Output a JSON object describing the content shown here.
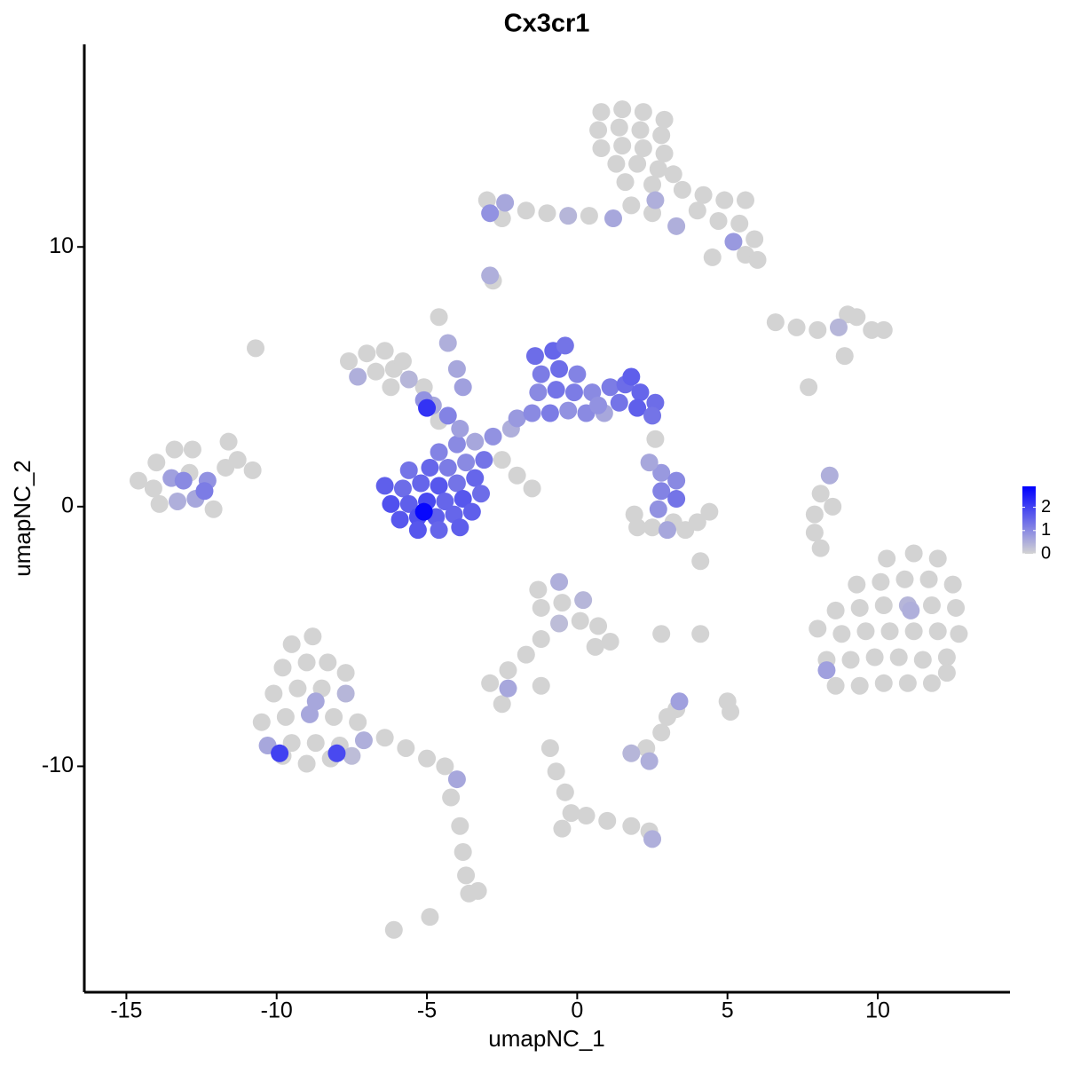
{
  "chart_data": {
    "type": "scatter",
    "title": "Cx3cr1",
    "x_label": "umapNC_1",
    "y_label": "umapNC_2",
    "xlim": [
      -16.4,
      14.4
    ],
    "ylim": [
      -18.7,
      17.8
    ],
    "xticks": [
      -15,
      -10,
      -5,
      0,
      5,
      10
    ],
    "yticks": [
      -10,
      0,
      10
    ],
    "color_scale": {
      "low": "#d3d3d3",
      "high": "#0000ff",
      "limits": [
        0,
        2.9
      ],
      "ticks": [
        0,
        1,
        2
      ]
    },
    "points": [
      [
        0.8,
        15.2,
        0
      ],
      [
        1.5,
        15.3,
        0
      ],
      [
        2.2,
        15.2,
        0
      ],
      [
        2.9,
        14.9,
        0
      ],
      [
        0.7,
        14.5,
        0
      ],
      [
        1.4,
        14.6,
        0
      ],
      [
        2.1,
        14.5,
        0
      ],
      [
        2.8,
        14.3,
        0
      ],
      [
        0.8,
        13.8,
        0
      ],
      [
        1.5,
        13.9,
        0
      ],
      [
        2.2,
        13.8,
        0
      ],
      [
        2.9,
        13.6,
        0
      ],
      [
        1.3,
        13.2,
        0
      ],
      [
        2.0,
        13.2,
        0
      ],
      [
        2.7,
        13.0,
        0
      ],
      [
        1.6,
        12.5,
        0
      ],
      [
        2.5,
        12.4,
        0
      ],
      [
        3.2,
        12.8,
        0
      ],
      [
        3.5,
        12.2,
        0
      ],
      [
        4.2,
        12.0,
        0
      ],
      [
        4.9,
        11.8,
        0
      ],
      [
        5.6,
        11.8,
        0
      ],
      [
        4.0,
        11.4,
        0
      ],
      [
        4.7,
        11.0,
        0
      ],
      [
        5.4,
        10.9,
        0
      ],
      [
        5.9,
        10.3,
        0
      ],
      [
        5.2,
        10.2,
        0.8
      ],
      [
        5.6,
        9.7,
        0
      ],
      [
        6.0,
        9.5,
        0
      ],
      [
        3.3,
        10.8,
        0.5
      ],
      [
        2.5,
        11.3,
        0
      ],
      [
        1.8,
        11.6,
        0
      ],
      [
        1.2,
        11.1,
        0.6
      ],
      [
        0.4,
        11.2,
        0
      ],
      [
        -0.3,
        11.2,
        0.4
      ],
      [
        -1.0,
        11.3,
        0
      ],
      [
        -1.7,
        11.4,
        0
      ],
      [
        -2.4,
        11.7,
        0.6
      ],
      [
        -3.0,
        11.8,
        0
      ],
      [
        -2.9,
        11.3,
        0.9
      ],
      [
        -2.5,
        11.1,
        0
      ],
      [
        2.6,
        11.8,
        0.5
      ],
      [
        4.5,
        9.6,
        0
      ],
      [
        -2.9,
        8.9,
        0.5
      ],
      [
        -2.8,
        8.7,
        0
      ],
      [
        -6.4,
        0.8,
        1.6
      ],
      [
        -5.8,
        0.7,
        1.4
      ],
      [
        -5.2,
        0.9,
        1.5
      ],
      [
        -4.6,
        0.8,
        1.7
      ],
      [
        -4.0,
        0.9,
        1.3
      ],
      [
        -3.4,
        1.1,
        1.5
      ],
      [
        -6.2,
        0.1,
        1.8
      ],
      [
        -5.6,
        0.1,
        1.6
      ],
      [
        -5.0,
        0.2,
        1.9
      ],
      [
        -4.4,
        0.2,
        1.5
      ],
      [
        -3.8,
        0.3,
        1.7
      ],
      [
        -3.2,
        0.5,
        1.4
      ],
      [
        -5.9,
        -0.5,
        1.7
      ],
      [
        -5.3,
        -0.4,
        1.8
      ],
      [
        -4.7,
        -0.4,
        1.6
      ],
      [
        -4.1,
        -0.3,
        1.5
      ],
      [
        -3.5,
        -0.2,
        1.6
      ],
      [
        -5.3,
        -0.9,
        1.7
      ],
      [
        -4.6,
        -0.9,
        1.5
      ],
      [
        -3.9,
        -0.8,
        1.6
      ],
      [
        -5.1,
        -0.2,
        2.8
      ],
      [
        -5.6,
        1.4,
        1.3
      ],
      [
        -4.9,
        1.5,
        1.5
      ],
      [
        -4.3,
        1.5,
        1.2
      ],
      [
        -3.7,
        1.7,
        1.0
      ],
      [
        -3.1,
        1.8,
        1.3
      ],
      [
        -4.6,
        2.1,
        1.1
      ],
      [
        -4.0,
        2.4,
        1.0
      ],
      [
        -3.4,
        2.5,
        0.6
      ],
      [
        -2.8,
        2.7,
        0.9
      ],
      [
        -2.2,
        3.0,
        0.5
      ],
      [
        -3.9,
        3.0,
        0.7
      ],
      [
        -4.3,
        3.5,
        1.1
      ],
      [
        -4.8,
        3.9,
        0.6
      ],
      [
        -5.1,
        4.1,
        0.9
      ],
      [
        -5.0,
        3.8,
        2.2
      ],
      [
        -2.0,
        3.4,
        0.8
      ],
      [
        -1.5,
        3.6,
        1.0
      ],
      [
        -0.9,
        3.6,
        1.2
      ],
      [
        -0.3,
        3.7,
        0.9
      ],
      [
        0.3,
        3.6,
        1.0
      ],
      [
        0.9,
        3.6,
        0.6
      ],
      [
        -1.4,
        5.8,
        1.4
      ],
      [
        -0.8,
        6.0,
        1.5
      ],
      [
        -1.2,
        5.1,
        1.2
      ],
      [
        -0.6,
        5.3,
        1.4
      ],
      [
        0.0,
        5.1,
        1.1
      ],
      [
        -1.3,
        4.4,
        1.0
      ],
      [
        -0.7,
        4.5,
        1.3
      ],
      [
        -0.1,
        4.4,
        1.2
      ],
      [
        0.5,
        4.4,
        1.0
      ],
      [
        1.1,
        4.6,
        1.2
      ],
      [
        1.6,
        4.7,
        1.4
      ],
      [
        2.1,
        4.4,
        1.5
      ],
      [
        2.6,
        4.0,
        1.4
      ],
      [
        1.4,
        4.0,
        1.3
      ],
      [
        2.0,
        3.8,
        1.6
      ],
      [
        2.5,
        3.5,
        1.3
      ],
      [
        1.8,
        5.0,
        1.6
      ],
      [
        0.7,
        3.9,
        0.9
      ],
      [
        -0.4,
        6.2,
        1.3
      ],
      [
        -7.6,
        5.6,
        0
      ],
      [
        -7.0,
        5.9,
        0
      ],
      [
        -6.4,
        6.0,
        0
      ],
      [
        -7.3,
        5.0,
        0.5
      ],
      [
        -6.7,
        5.2,
        0
      ],
      [
        -6.1,
        5.3,
        0
      ],
      [
        -5.6,
        4.9,
        0.4
      ],
      [
        -6.2,
        4.6,
        0
      ],
      [
        -5.1,
        4.6,
        0
      ],
      [
        -5.8,
        5.6,
        0
      ],
      [
        -4.6,
        3.3,
        0
      ],
      [
        -4.6,
        7.3,
        0
      ],
      [
        -4.3,
        6.3,
        0.5
      ],
      [
        -4.0,
        5.3,
        0.6
      ],
      [
        -3.8,
        4.6,
        0.7
      ],
      [
        -2.5,
        1.8,
        0
      ],
      [
        -2.0,
        1.2,
        0
      ],
      [
        -1.5,
        0.7,
        0
      ],
      [
        2.8,
        1.3,
        0.8
      ],
      [
        3.3,
        1.0,
        1.0
      ],
      [
        2.8,
        0.6,
        1.1
      ],
      [
        3.3,
        0.3,
        1.3
      ],
      [
        2.7,
        -0.1,
        0.9
      ],
      [
        3.2,
        -0.6,
        0
      ],
      [
        2.5,
        -0.8,
        0
      ],
      [
        3.6,
        -0.9,
        0
      ],
      [
        4.0,
        -0.6,
        0
      ],
      [
        1.9,
        -0.3,
        0
      ],
      [
        2.0,
        -0.8,
        0
      ],
      [
        4.4,
        -0.2,
        0
      ],
      [
        3.0,
        -0.9,
        0.6
      ],
      [
        2.4,
        1.7,
        0.6
      ],
      [
        2.6,
        2.6,
        0
      ],
      [
        4.1,
        -2.1,
        0
      ],
      [
        -14.6,
        1.0,
        0
      ],
      [
        -14.0,
        1.7,
        0
      ],
      [
        -13.4,
        2.2,
        0
      ],
      [
        -12.8,
        2.2,
        0
      ],
      [
        -14.1,
        0.7,
        0
      ],
      [
        -13.5,
        1.1,
        0.7
      ],
      [
        -12.9,
        1.3,
        0
      ],
      [
        -12.3,
        1.0,
        0.9
      ],
      [
        -11.7,
        1.5,
        0
      ],
      [
        -13.9,
        0.1,
        0
      ],
      [
        -13.3,
        0.2,
        0.5
      ],
      [
        -12.7,
        0.3,
        0.6
      ],
      [
        -12.1,
        -0.1,
        0
      ],
      [
        -11.3,
        1.8,
        0
      ],
      [
        -11.6,
        2.5,
        0
      ],
      [
        -10.8,
        1.4,
        0
      ],
      [
        -12.4,
        0.6,
        1.2
      ],
      [
        -13.1,
        1.0,
        1.0
      ],
      [
        -10.7,
        6.1,
        0
      ],
      [
        10.3,
        -2.0,
        0
      ],
      [
        11.2,
        -1.8,
        0
      ],
      [
        12.0,
        -2.0,
        0
      ],
      [
        9.3,
        -3.0,
        0
      ],
      [
        10.1,
        -2.9,
        0
      ],
      [
        10.9,
        -2.8,
        0
      ],
      [
        11.7,
        -2.8,
        0
      ],
      [
        12.5,
        -3.0,
        0
      ],
      [
        8.6,
        -4.0,
        0
      ],
      [
        9.4,
        -3.9,
        0
      ],
      [
        10.2,
        -3.8,
        0
      ],
      [
        11.0,
        -3.8,
        0.4
      ],
      [
        11.8,
        -3.8,
        0
      ],
      [
        12.6,
        -3.9,
        0
      ],
      [
        8.0,
        -4.7,
        0
      ],
      [
        8.8,
        -4.9,
        0
      ],
      [
        9.6,
        -4.8,
        0
      ],
      [
        10.4,
        -4.8,
        0
      ],
      [
        11.2,
        -4.8,
        0
      ],
      [
        12.0,
        -4.8,
        0
      ],
      [
        12.7,
        -4.9,
        0
      ],
      [
        8.3,
        -5.9,
        0
      ],
      [
        9.1,
        -5.9,
        0
      ],
      [
        9.9,
        -5.8,
        0
      ],
      [
        10.7,
        -5.8,
        0
      ],
      [
        11.5,
        -5.9,
        0
      ],
      [
        12.3,
        -5.8,
        0
      ],
      [
        8.6,
        -6.9,
        0
      ],
      [
        9.4,
        -6.9,
        0
      ],
      [
        10.2,
        -6.8,
        0
      ],
      [
        11.0,
        -6.8,
        0
      ],
      [
        11.8,
        -6.8,
        0
      ],
      [
        12.3,
        -6.4,
        0
      ],
      [
        8.3,
        -6.3,
        0.7
      ],
      [
        11.1,
        -4.0,
        0.5
      ],
      [
        6.6,
        7.1,
        0
      ],
      [
        7.3,
        6.9,
        0
      ],
      [
        8.0,
        6.8,
        0
      ],
      [
        8.7,
        6.9,
        0.4
      ],
      [
        9.3,
        7.3,
        0
      ],
      [
        9.8,
        6.8,
        0
      ],
      [
        10.2,
        6.8,
        0
      ],
      [
        9.0,
        7.4,
        0
      ],
      [
        8.9,
        5.8,
        0
      ],
      [
        7.7,
        4.6,
        0
      ],
      [
        8.4,
        1.2,
        0.5
      ],
      [
        8.1,
        0.5,
        0
      ],
      [
        7.9,
        -0.3,
        0
      ],
      [
        7.9,
        -1.0,
        0
      ],
      [
        8.1,
        -1.6,
        0
      ],
      [
        8.5,
        0.0,
        0
      ],
      [
        -9.5,
        -5.3,
        0
      ],
      [
        -8.8,
        -5.0,
        0
      ],
      [
        -9.8,
        -6.2,
        0
      ],
      [
        -9.0,
        -6.0,
        0
      ],
      [
        -8.3,
        -6.0,
        0
      ],
      [
        -7.7,
        -6.4,
        0
      ],
      [
        -10.1,
        -7.2,
        0
      ],
      [
        -9.3,
        -7.0,
        0
      ],
      [
        -8.5,
        -7.0,
        0
      ],
      [
        -7.7,
        -7.2,
        0.4
      ],
      [
        -10.5,
        -8.3,
        0
      ],
      [
        -9.7,
        -8.1,
        0
      ],
      [
        -8.9,
        -8.0,
        0.6
      ],
      [
        -8.1,
        -8.1,
        0
      ],
      [
        -7.3,
        -8.3,
        0
      ],
      [
        -10.3,
        -9.2,
        0.6
      ],
      [
        -9.5,
        -9.1,
        0
      ],
      [
        -8.7,
        -9.1,
        0
      ],
      [
        -7.9,
        -9.2,
        0
      ],
      [
        -7.1,
        -9.0,
        0.5
      ],
      [
        -6.4,
        -8.9,
        0
      ],
      [
        -5.7,
        -9.3,
        0
      ],
      [
        -5.0,
        -9.7,
        0
      ],
      [
        -4.4,
        -10.0,
        0
      ],
      [
        -4.0,
        -10.5,
        0.6
      ],
      [
        -9.8,
        -9.6,
        0
      ],
      [
        -9.0,
        -9.9,
        0
      ],
      [
        -8.2,
        -9.7,
        0
      ],
      [
        -7.5,
        -9.6,
        0.3
      ],
      [
        -9.9,
        -9.5,
        2.0
      ],
      [
        -8.0,
        -9.5,
        1.9
      ],
      [
        -8.7,
        -7.5,
        0.6
      ],
      [
        -4.2,
        -11.2,
        0
      ],
      [
        -3.9,
        -12.3,
        0
      ],
      [
        -3.8,
        -13.3,
        0
      ],
      [
        -3.7,
        -14.2,
        0
      ],
      [
        -3.6,
        -14.9,
        0
      ],
      [
        -3.3,
        -14.8,
        0
      ],
      [
        -6.1,
        -16.3,
        0
      ],
      [
        -4.9,
        -15.8,
        0
      ],
      [
        -1.3,
        -3.2,
        0
      ],
      [
        -0.6,
        -2.9,
        0.5
      ],
      [
        -1.2,
        -3.9,
        0
      ],
      [
        -0.5,
        -3.7,
        0
      ],
      [
        0.2,
        -3.6,
        0.4
      ],
      [
        -0.6,
        -4.5,
        0.3
      ],
      [
        0.1,
        -4.4,
        0
      ],
      [
        0.7,
        -4.6,
        0
      ],
      [
        1.1,
        -5.2,
        0
      ],
      [
        0.6,
        -5.4,
        0
      ],
      [
        -1.2,
        -5.1,
        0
      ],
      [
        -1.7,
        -5.7,
        0
      ],
      [
        -2.3,
        -6.3,
        0
      ],
      [
        -2.9,
        -6.8,
        0
      ],
      [
        -2.3,
        -7.0,
        0.6
      ],
      [
        -2.5,
        -7.6,
        0
      ],
      [
        -1.2,
        -6.9,
        0
      ],
      [
        2.8,
        -4.9,
        0
      ],
      [
        4.1,
        -4.9,
        0
      ],
      [
        -0.9,
        -9.3,
        0
      ],
      [
        -0.7,
        -10.2,
        0
      ],
      [
        -0.4,
        -11.0,
        0
      ],
      [
        -0.2,
        -11.8,
        0
      ],
      [
        -0.5,
        -12.4,
        0
      ],
      [
        0.3,
        -11.9,
        0
      ],
      [
        1.0,
        -12.1,
        0
      ],
      [
        1.8,
        -12.3,
        0
      ],
      [
        2.4,
        -12.5,
        0
      ],
      [
        2.5,
        -12.8,
        0.5
      ],
      [
        1.8,
        -9.5,
        0.4
      ],
      [
        2.3,
        -9.3,
        0
      ],
      [
        2.8,
        -8.7,
        0
      ],
      [
        3.0,
        -8.1,
        0
      ],
      [
        2.4,
        -9.8,
        0.5
      ],
      [
        3.4,
        -7.5,
        0.7
      ],
      [
        3.3,
        -7.8,
        0
      ],
      [
        5.0,
        -7.5,
        0
      ],
      [
        5.1,
        -7.9,
        0
      ]
    ]
  }
}
